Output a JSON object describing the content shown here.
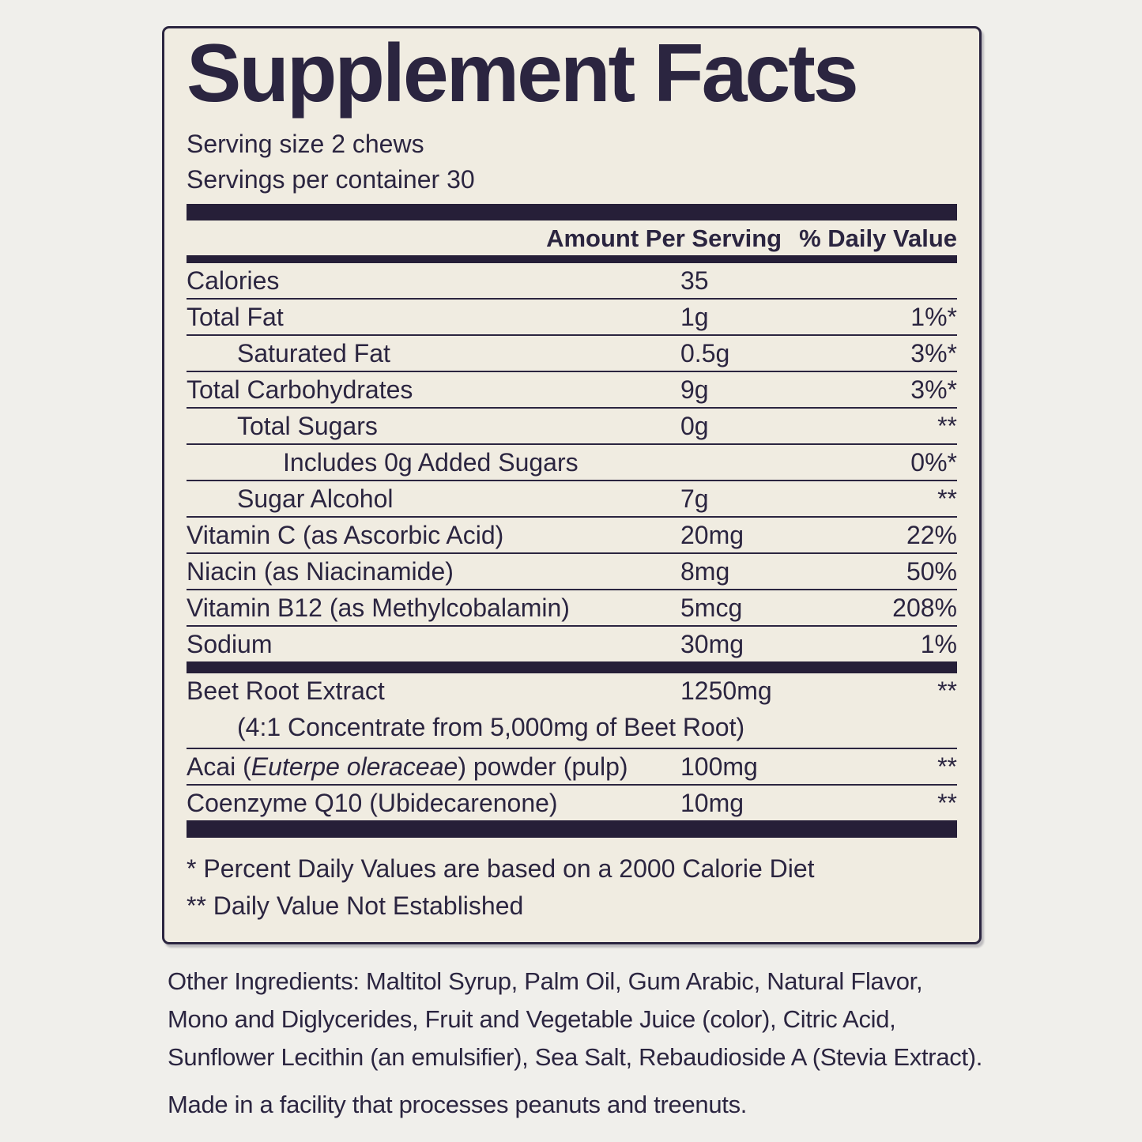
{
  "label": {
    "title": "Supplement Facts",
    "serving_size": "Serving size 2 chews",
    "servings_per_container": "Servings per container 30",
    "column_headers": {
      "amount": "Amount Per Serving",
      "daily_value": "% Daily Value"
    },
    "sections": [
      {
        "rows": [
          {
            "label": "Calories",
            "amount": "35",
            "dv": "",
            "indent": 0
          },
          {
            "label": "Total Fat",
            "amount": "1g",
            "dv": "1%*",
            "indent": 0
          },
          {
            "label": "Saturated Fat",
            "amount": "0.5g",
            "dv": "3%*",
            "indent": 1
          },
          {
            "label": "Total Carbohydrates",
            "amount": "9g",
            "dv": "3%*",
            "indent": 0
          },
          {
            "label": "Total Sugars",
            "amount": "0g",
            "dv": "**",
            "indent": 1
          },
          {
            "label": "Includes 0g Added Sugars",
            "amount": "",
            "dv": "0%*",
            "indent": 2
          },
          {
            "label": "Sugar Alcohol",
            "amount": "7g",
            "dv": "**",
            "indent": 1
          },
          {
            "label": "Vitamin C (as Ascorbic Acid)",
            "amount": "20mg",
            "dv": "22%",
            "indent": 0
          },
          {
            "label": "Niacin (as Niacinamide)",
            "amount": "8mg",
            "dv": "50%",
            "indent": 0
          },
          {
            "label": "Vitamin B12 (as Methylcobalamin)",
            "amount": "5mcg",
            "dv": "208%",
            "indent": 0
          },
          {
            "label": "Sodium",
            "amount": "30mg",
            "dv": "1%",
            "indent": 0
          }
        ]
      },
      {
        "rows": [
          {
            "label": "Beet Root Extract",
            "amount": "1250mg",
            "dv": "**",
            "indent": 0,
            "subline": "(4:1 Concentrate from 5,000mg of Beet Root)"
          },
          {
            "label_parts": [
              {
                "t": "Acai ("
              },
              {
                "t": "Euterpe oleraceae",
                "i": true
              },
              {
                "t": ") powder (pulp)"
              }
            ],
            "amount": "100mg",
            "dv": "**",
            "indent": 0
          },
          {
            "label": "Coenzyme Q10 (Ubidecarenone)",
            "amount": "10mg",
            "dv": "**",
            "indent": 0
          }
        ]
      }
    ],
    "footnotes": [
      "* Percent Daily Values are based on a 2000 Calorie Diet",
      "** Daily Value Not Established"
    ]
  },
  "below_label": {
    "other_ingredients": "Other Ingredients: Maltitol Syrup, Palm Oil, Gum Arabic, Natural Flavor,\nMono and Diglycerides, Fruit and Vegetable Juice (color), Citric Acid,\nSunflower Lecithin (an emulsifier), Sea Salt, Rebaudioside A (Stevia Extract).",
    "allergen_notice": "Made in a facility that processes peanuts and treenuts."
  },
  "colors": {
    "ink": "#2b2540",
    "bar": "#261f38",
    "label_background": "#f0ece1",
    "page_background": "#f0efeb"
  }
}
